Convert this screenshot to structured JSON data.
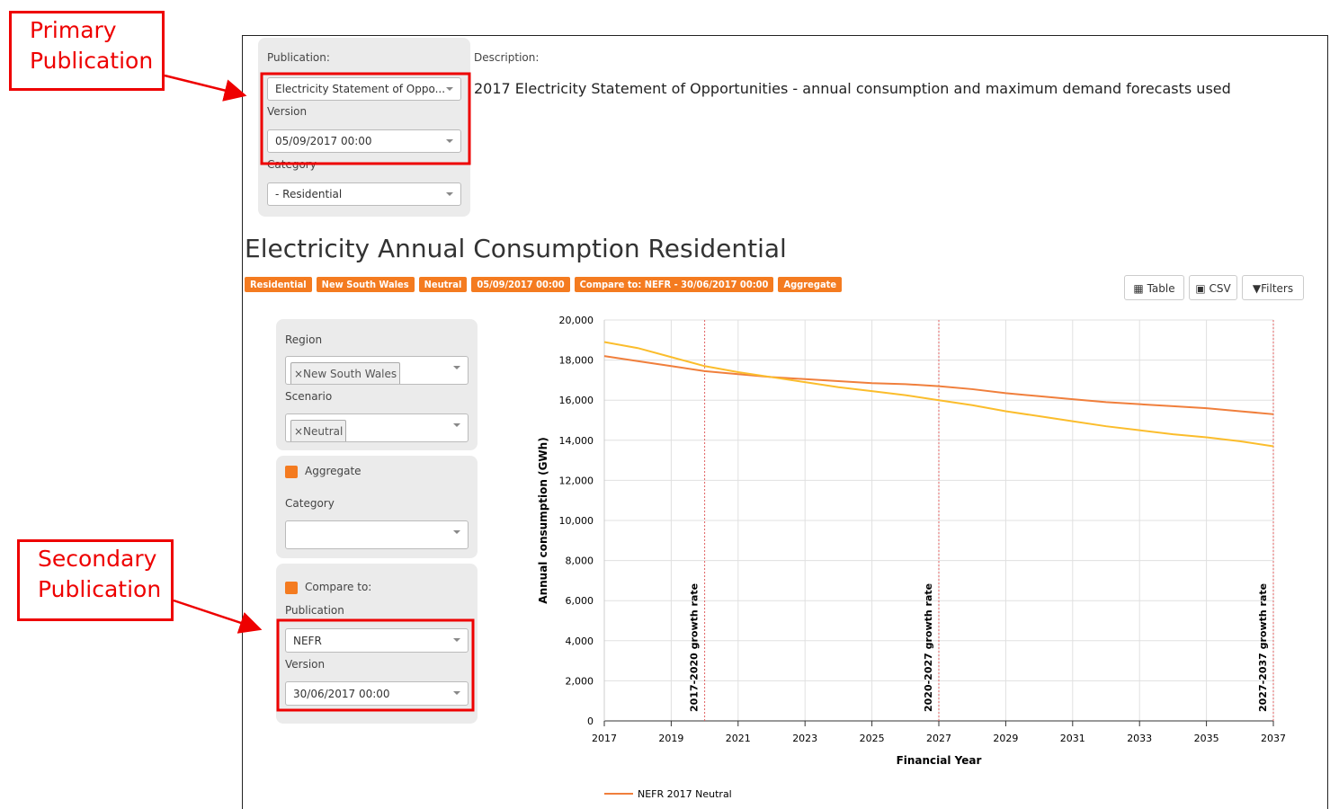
{
  "annotations": {
    "primary": "Primary Publication",
    "secondary": "Secondary Publication"
  },
  "top_filters": {
    "publication_label": "Publication:",
    "publication_value": "Electricity Statement of Oppo...",
    "version_label": "Version",
    "version_value": "05/09/2017 00:00",
    "category_label": "Category",
    "category_value": "- Residential"
  },
  "description": {
    "label": "Description:",
    "text": "2017 Electricity Statement of Opportunities - annual consumption and maximum demand forecasts used"
  },
  "page_title": "Electricity Annual Consumption Residential",
  "tags": [
    "Residential",
    "New South Wales",
    "Neutral",
    "05/09/2017 00:00",
    "Compare to: NEFR - 30/06/2017 00:00",
    "Aggregate"
  ],
  "buttons": [
    "Table",
    "CSV",
    "Filters"
  ],
  "side_filters": {
    "region_label": "Region",
    "region_tag": "×New South Wales",
    "scenario_label": "Scenario",
    "scenario_tag": "×Neutral",
    "aggregate_label": "Aggregate",
    "category_label": "Category",
    "compare_label": "Compare to:",
    "publication_label": "Publication",
    "publication_value": "NEFR",
    "version_label": "Version",
    "version_value": "30/06/2017 00:00"
  },
  "chart_data": {
    "type": "line",
    "xlabel": "Financial Year",
    "ylabel": "Annual consumption (GWh)",
    "x": [
      2017,
      2018,
      2019,
      2020,
      2021,
      2022,
      2023,
      2024,
      2025,
      2026,
      2027,
      2028,
      2029,
      2030,
      2031,
      2032,
      2033,
      2034,
      2035,
      2036,
      2037
    ],
    "xlim": [
      2017,
      2037
    ],
    "xticks": [
      2017,
      2019,
      2021,
      2023,
      2025,
      2027,
      2029,
      2031,
      2033,
      2035,
      2037
    ],
    "ylim": [
      0,
      20000
    ],
    "yticks": [
      0,
      {
        "value": 2000,
        "label": "2,000"
      },
      {
        "value": 4000,
        "label": "4,000"
      },
      {
        "value": 6000,
        "label": "6,000"
      },
      {
        "value": 8000,
        "label": "8,000"
      },
      {
        "value": 10000,
        "label": "10,000"
      },
      {
        "value": 12000,
        "label": "12,000"
      },
      {
        "value": 14000,
        "label": "14,000"
      },
      {
        "value": 16000,
        "label": "16,000"
      },
      {
        "value": 18000,
        "label": "18,000"
      },
      {
        "value": 20000,
        "label": "20,000"
      }
    ],
    "grid": true,
    "series": [
      {
        "name": "NEFR 2017 Neutral",
        "color": "#f07f3c",
        "values": [
          18200,
          17950,
          17700,
          17450,
          17300,
          17150,
          17050,
          16950,
          16850,
          16800,
          16700,
          16550,
          16350,
          16200,
          16050,
          15900,
          15800,
          15700,
          15600,
          15450,
          15300
        ]
      },
      {
        "color": "#fbbd2c",
        "values": [
          18900,
          18600,
          18150,
          17700,
          17400,
          17150,
          16900,
          16650,
          16450,
          16250,
          16000,
          15750,
          15450,
          15200,
          14950,
          14700,
          14500,
          14300,
          14150,
          13950,
          13700
        ]
      }
    ],
    "plot_lines": [
      {
        "value": 2020,
        "label": "2017-2020 growth rate"
      },
      {
        "value": 2027,
        "label": "2020-2027 growth rate"
      },
      {
        "value": 2037,
        "label": "2027-2037 growth rate"
      }
    ]
  }
}
